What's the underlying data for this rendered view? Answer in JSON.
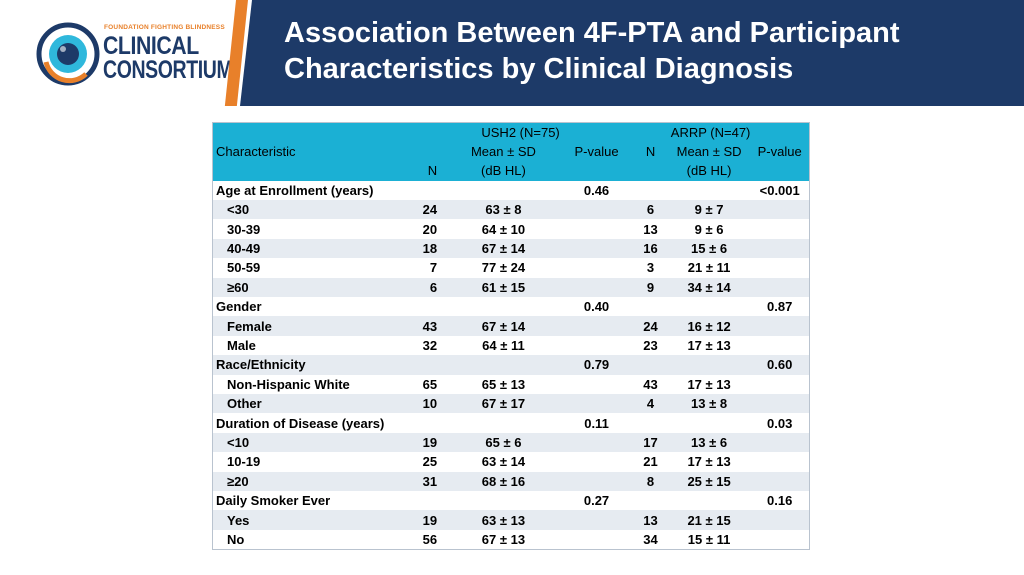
{
  "logo": {
    "tagline": "FOUNDATION FIGHTING BLINDNESS",
    "line1": "CLINICAL",
    "line2": "CONSORTIUM"
  },
  "title_line1": "Association Between 4F-PTA and Participant",
  "title_line2": "Characteristics by Clinical Diagnosis",
  "colors": {
    "header_bg": "#1d3a68",
    "accent_orange": "#e8802a",
    "table_header": "#1bb0d4",
    "stripe_row": "#e6ebf1"
  },
  "table": {
    "header": {
      "group_ush2": "USH2 (N=75)",
      "group_arrp": "ARRP (N=47)",
      "characteristic": "Characteristic",
      "mean_sd": "Mean ± SD",
      "pvalue": "P-value",
      "n": "N",
      "unit": "(dB HL)"
    },
    "rows": [
      {
        "label": "Age at Enrollment (years)",
        "type": "category",
        "n1": "",
        "m1": "",
        "p1": "0.46",
        "n2": "",
        "m2": "",
        "p2": "<0.001"
      },
      {
        "label": "<30",
        "type": "sub",
        "n1": "24",
        "m1": "63 ± 8",
        "p1": "",
        "n2": "6",
        "m2": "9 ± 7",
        "p2": ""
      },
      {
        "label": "30-39",
        "type": "sub",
        "n1": "20",
        "m1": "64 ± 10",
        "p1": "",
        "n2": "13",
        "m2": "9 ± 6",
        "p2": ""
      },
      {
        "label": "40-49",
        "type": "sub",
        "n1": "18",
        "m1": "67 ± 14",
        "p1": "",
        "n2": "16",
        "m2": "15 ± 6",
        "p2": ""
      },
      {
        "label": "50-59",
        "type": "sub",
        "n1": "7",
        "m1": "77 ± 24",
        "p1": "",
        "n2": "3",
        "m2": "21 ± 11",
        "p2": ""
      },
      {
        "label": "≥60",
        "type": "sub",
        "n1": "6",
        "m1": "61 ± 15",
        "p1": "",
        "n2": "9",
        "m2": "34 ± 14",
        "p2": ""
      },
      {
        "label": "Gender",
        "type": "category",
        "n1": "",
        "m1": "",
        "p1": "0.40",
        "n2": "",
        "m2": "",
        "p2": "0.87"
      },
      {
        "label": "Female",
        "type": "sub",
        "n1": "43",
        "m1": "67 ± 14",
        "p1": "",
        "n2": "24",
        "m2": "16 ± 12",
        "p2": ""
      },
      {
        "label": "Male",
        "type": "sub",
        "n1": "32",
        "m1": "64 ± 11",
        "p1": "",
        "n2": "23",
        "m2": "17 ± 13",
        "p2": ""
      },
      {
        "label": "Race/Ethnicity",
        "type": "category",
        "n1": "",
        "m1": "",
        "p1": "0.79",
        "n2": "",
        "m2": "",
        "p2": "0.60"
      },
      {
        "label": "Non-Hispanic White",
        "type": "sub",
        "n1": "65",
        "m1": "65 ± 13",
        "p1": "",
        "n2": "43",
        "m2": "17 ± 13",
        "p2": ""
      },
      {
        "label": "Other",
        "type": "sub",
        "n1": "10",
        "m1": "67 ± 17",
        "p1": "",
        "n2": "4",
        "m2": "13 ± 8",
        "p2": ""
      },
      {
        "label": "Duration of Disease (years)",
        "type": "category",
        "n1": "",
        "m1": "",
        "p1": "0.11",
        "n2": "",
        "m2": "",
        "p2": "0.03"
      },
      {
        "label": "<10",
        "type": "sub",
        "n1": "19",
        "m1": "65 ± 6",
        "p1": "",
        "n2": "17",
        "m2": "13 ± 6",
        "p2": ""
      },
      {
        "label": "10-19",
        "type": "sub",
        "n1": "25",
        "m1": "63 ± 14",
        "p1": "",
        "n2": "21",
        "m2": "17 ± 13",
        "p2": ""
      },
      {
        "label": "≥20",
        "type": "sub",
        "n1": "31",
        "m1": "68 ± 16",
        "p1": "",
        "n2": "8",
        "m2": "25 ± 15",
        "p2": ""
      },
      {
        "label": "Daily Smoker Ever",
        "type": "category",
        "n1": "",
        "m1": "",
        "p1": "0.27",
        "n2": "",
        "m2": "",
        "p2": "0.16"
      },
      {
        "label": "Yes",
        "type": "sub",
        "n1": "19",
        "m1": "63 ± 13",
        "p1": "",
        "n2": "13",
        "m2": "21 ± 15",
        "p2": ""
      },
      {
        "label": "No",
        "type": "sub",
        "n1": "56",
        "m1": "67 ± 13",
        "p1": "",
        "n2": "34",
        "m2": "15 ± 11",
        "p2": ""
      }
    ]
  }
}
